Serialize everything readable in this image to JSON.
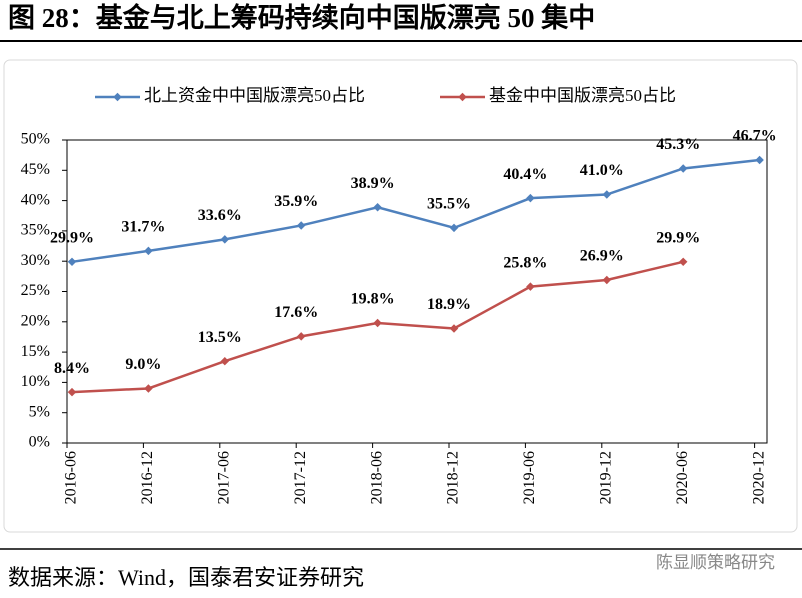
{
  "chart_data": {
    "type": "line",
    "title": "图 28：基金与北上筹码持续向中国版漂亮 50 集中",
    "categories": [
      "2016-06",
      "2016-12",
      "2017-06",
      "2017-12",
      "2018-06",
      "2018-12",
      "2019-06",
      "2019-12",
      "2020-06",
      "2020-12"
    ],
    "series": [
      {
        "name": "北上资金中中国版漂亮50占比",
        "color": "#4f81bd",
        "values": [
          29.9,
          31.7,
          33.6,
          35.9,
          38.9,
          35.5,
          40.4,
          41.0,
          45.3,
          46.7
        ],
        "value_labels": [
          "29.9%",
          "31.7%",
          "33.6%",
          "35.9%",
          "38.9%",
          "35.5%",
          "40.4%",
          "41.0%",
          "45.3%",
          "46.7%"
        ]
      },
      {
        "name": "基金中中国版漂亮50占比",
        "color": "#c0504d",
        "values": [
          8.4,
          9.0,
          13.5,
          17.6,
          19.8,
          18.9,
          25.8,
          26.9,
          29.9,
          null
        ],
        "value_labels": [
          "8.4%",
          "9.0%",
          "13.5%",
          "17.6%",
          "19.8%",
          "18.9%",
          "25.8%",
          "26.9%",
          "29.9%",
          null
        ]
      }
    ],
    "ylim": [
      0,
      50
    ],
    "yticks": [
      {
        "value": 0,
        "label": "0%"
      },
      {
        "value": 5,
        "label": "5%"
      },
      {
        "value": 10,
        "label": "10%"
      },
      {
        "value": 15,
        "label": "15%"
      },
      {
        "value": 20,
        "label": "20%"
      },
      {
        "value": 25,
        "label": "25%"
      },
      {
        "value": 30,
        "label": "30%"
      },
      {
        "value": 35,
        "label": "35%"
      },
      {
        "value": 40,
        "label": "40%"
      },
      {
        "value": 45,
        "label": "45%"
      },
      {
        "value": 50,
        "label": "50%"
      }
    ],
    "grid": false,
    "legend": "top",
    "source": "数据来源：Wind，国泰君安证券研究",
    "watermark": "陈显顺策略研究"
  }
}
